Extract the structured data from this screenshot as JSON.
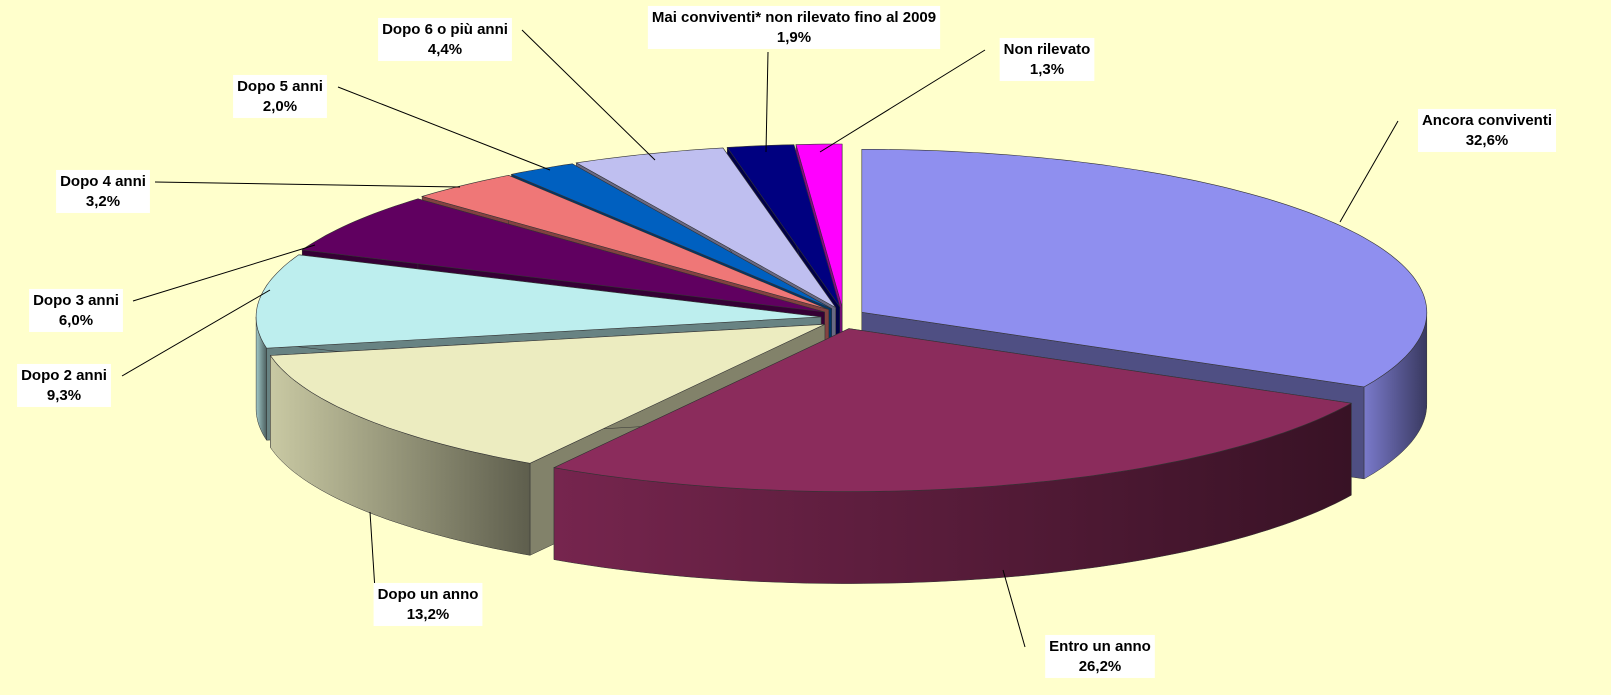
{
  "chart_data": {
    "type": "pie3d",
    "categories": [
      "Ancora conviventi",
      "Entro un anno",
      "Dopo un anno",
      "Dopo 2 anni",
      "Dopo 3 anni",
      "Dopo 4 anni",
      "Dopo 5 anni",
      "Dopo 6 o più anni",
      "Mai conviventi* non rilevato fino al 2009",
      "Non rilevato"
    ],
    "values": [
      32.6,
      26.2,
      13.2,
      9.3,
      6.0,
      3.2,
      2.0,
      4.4,
      1.9,
      1.3
    ],
    "value_labels": [
      "32,6%",
      "26,2%",
      "13,2%",
      "9,3%",
      "6,0%",
      "3,2%",
      "2,0%",
      "4,4%",
      "1,9%",
      "1,3%"
    ],
    "colors": [
      "#8f8fef",
      "#8b2c5c",
      "#ececc0",
      "#bdeeee",
      "#600060",
      "#ef7777",
      "#0060c0",
      "#bfbff0",
      "#000080",
      "#ff00ff"
    ]
  }
}
